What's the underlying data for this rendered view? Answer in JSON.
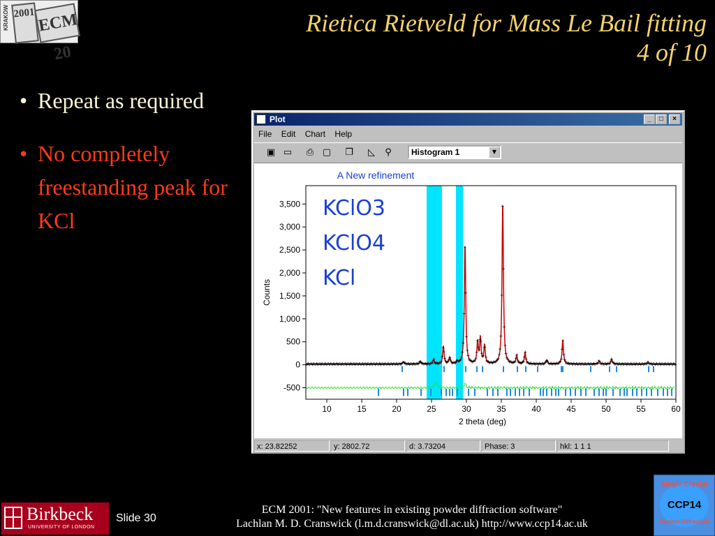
{
  "ecm_logo": {
    "line1": "KRAKÓW",
    "line2": "2001",
    "line3": "ECM 20"
  },
  "slide_title": {
    "line1": "Rietica Rietveld for Mass Le Bail fitting",
    "line2": "4 of 10"
  },
  "bullets": [
    {
      "text": "Repeat as required",
      "color": "#fdf6d8"
    },
    {
      "text": "No completely freestanding peak for KCl",
      "color": "#ff3a1a"
    }
  ],
  "window": {
    "title": "Plot",
    "menu": [
      "File",
      "Edit",
      "Chart",
      "Help"
    ],
    "toolbar_icons": [
      "save-icon",
      "open-icon",
      "print-icon",
      "print-preview-icon",
      "copy-icon",
      "chart-icon",
      "zoom-icon"
    ],
    "histogram_select": "Histogram 1",
    "status": {
      "x": "x: 23.82252",
      "y": "y: 2802.72",
      "d": "d: 3.73204",
      "phase": "Phase: 3",
      "hkl": "hkl: 1 1 1"
    }
  },
  "chart_data": {
    "type": "line",
    "title": "A New refinement",
    "xlabel": "2 theta (deg)",
    "ylabel": "Counts",
    "xlim": [
      7,
      60
    ],
    "ylim": [
      -750,
      3900
    ],
    "x_ticks": [
      10,
      15,
      20,
      25,
      30,
      35,
      40,
      45,
      50,
      55,
      60
    ],
    "y_ticks": [
      -500,
      0,
      500,
      1000,
      1500,
      2000,
      2500,
      3000,
      3500
    ],
    "y_tick_labels": [
      "-500",
      "0",
      "500",
      "1,000",
      "1,500",
      "2,000",
      "2,500",
      "3,000",
      "3,500"
    ],
    "annotations": [
      "KClO3",
      "KClO4",
      "KCl"
    ],
    "excluded_regions": [
      [
        24.3,
        26.5
      ],
      [
        28.5,
        29.5
      ]
    ],
    "background": 15,
    "peaks": [
      {
        "x": 21.0,
        "h": 50
      },
      {
        "x": 23.4,
        "h": 60
      },
      {
        "x": 25.3,
        "h": 100
      },
      {
        "x": 26.7,
        "h": 390
      },
      {
        "x": 27.6,
        "h": 140
      },
      {
        "x": 28.7,
        "h": 50
      },
      {
        "x": 29.8,
        "h": 2600
      },
      {
        "x": 31.6,
        "h": 460
      },
      {
        "x": 32.0,
        "h": 560
      },
      {
        "x": 32.6,
        "h": 400
      },
      {
        "x": 35.2,
        "h": 3520
      },
      {
        "x": 37.2,
        "h": 180
      },
      {
        "x": 38.4,
        "h": 250
      },
      {
        "x": 41.5,
        "h": 90
      },
      {
        "x": 43.8,
        "h": 520
      },
      {
        "x": 49.0,
        "h": 70
      },
      {
        "x": 50.8,
        "h": 110
      },
      {
        "x": 56.0,
        "h": 40
      }
    ],
    "difference_offset": -500,
    "difference_spikes": [
      {
        "x": 25.6,
        "h": 150
      },
      {
        "x": 29.8,
        "h": 100
      }
    ],
    "reflections_phase_upper": [
      20.8,
      26.8,
      29.9,
      31.5,
      32.3,
      35.3,
      37.3,
      38.5,
      40.2,
      43.6,
      43.8,
      47.8,
      50.5,
      51.5,
      56.1,
      56.8
    ],
    "reflections_phase_lower": [
      17.4,
      21.0,
      21.6,
      23.5,
      24.9,
      26.4,
      27.1,
      27.6,
      28.0,
      28.7,
      30.3,
      31.2,
      33.0,
      33.8,
      34.5,
      35.8,
      36.3,
      37.0,
      37.6,
      38.2,
      39.0,
      40.6,
      41.0,
      41.5,
      42.2,
      42.8,
      43.2,
      44.2,
      44.9,
      45.6,
      46.4,
      47.1,
      48.3,
      49.0,
      49.6,
      50.0,
      51.0,
      52.0,
      52.6,
      53.0,
      53.8,
      54.4,
      55.1,
      55.8,
      56.5,
      57.4,
      58.2,
      58.8,
      59.4
    ],
    "colors": {
      "observed": "#000000",
      "calculated": "#cc0000",
      "difference": "#22e622",
      "reflections": "#1e88e5",
      "excluded": "#00e5ff",
      "title": "#1a3fd6",
      "annotation": "#1a3fd6"
    }
  },
  "footer": {
    "logo_name": "Birkbeck",
    "logo_sub": "UNIVERSITY OF LONDON",
    "slide": "Slide 30",
    "line1": "ECM 2001: \"New features in existing powder diffraction software\"",
    "line2": "Lachlan M. D. Cranswick (l.m.d.cranswick@dl.ac.uk) http://www.ccp14.ac.uk",
    "ccp_top": "Single Crystal",
    "ccp_mid": "CCP14",
    "ccp_bottom": "Powder Diffraction"
  }
}
